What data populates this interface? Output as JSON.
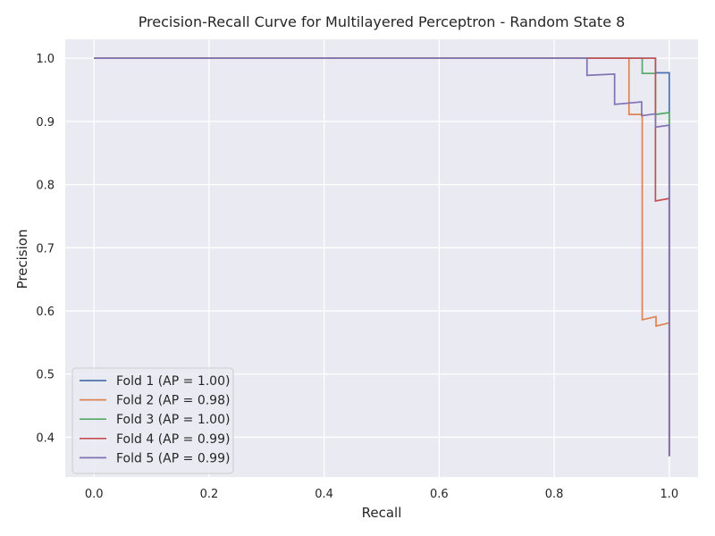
{
  "chart_data": {
    "type": "line",
    "title": "Precision-Recall Curve for Multilayered Perceptron - Random State 8",
    "xlabel": "Recall",
    "ylabel": "Precision",
    "xlim": [
      -0.05,
      1.05
    ],
    "ylim": [
      0.337,
      1.03
    ],
    "xticks": [
      0.0,
      0.2,
      0.4,
      0.6,
      0.8,
      1.0
    ],
    "xtick_labels": [
      "0.0",
      "0.2",
      "0.4",
      "0.6",
      "0.8",
      "1.0"
    ],
    "yticks": [
      0.4,
      0.5,
      0.6,
      0.7,
      0.8,
      0.9,
      1.0
    ],
    "ytick_labels": [
      "0.4",
      "0.5",
      "0.6",
      "0.7",
      "0.8",
      "0.9",
      "1.0"
    ],
    "grid": true,
    "legend_position": "lower-left",
    "background_color": "#eaeaf2",
    "series": [
      {
        "name": "Fold 1 (AP = 1.00)",
        "color": "#4c72b0",
        "x": [
          0.0,
          0.976,
          0.976,
          1.0,
          1.0
        ],
        "y": [
          1.0,
          1.0,
          0.977,
          0.977,
          0.37
        ]
      },
      {
        "name": "Fold 2 (AP = 0.98)",
        "color": "#dd8452",
        "x": [
          0.0,
          0.93,
          0.93,
          0.953,
          0.953,
          0.977,
          0.977,
          1.0,
          1.0
        ],
        "y": [
          1.0,
          1.0,
          0.911,
          0.911,
          0.586,
          0.591,
          0.576,
          0.581,
          0.37
        ]
      },
      {
        "name": "Fold 3 (AP = 1.00)",
        "color": "#55a868",
        "x": [
          0.0,
          0.953,
          0.953,
          0.976,
          0.976,
          1.0,
          1.0
        ],
        "y": [
          1.0,
          1.0,
          0.976,
          0.976,
          0.911,
          0.914,
          0.37
        ]
      },
      {
        "name": "Fold 4 (AP = 0.99)",
        "color": "#c44e52",
        "x": [
          0.0,
          0.976,
          0.976,
          1.0,
          1.0
        ],
        "y": [
          1.0,
          1.0,
          0.774,
          0.778,
          0.37
        ]
      },
      {
        "name": "Fold 5 (AP = 0.99)",
        "color": "#8172b3",
        "x": [
          0.0,
          0.857,
          0.857,
          0.905,
          0.905,
          0.952,
          0.952,
          0.976,
          0.976,
          1.0,
          1.0
        ],
        "y": [
          1.0,
          1.0,
          0.973,
          0.975,
          0.927,
          0.931,
          0.909,
          0.912,
          0.891,
          0.894,
          0.37
        ]
      }
    ]
  }
}
